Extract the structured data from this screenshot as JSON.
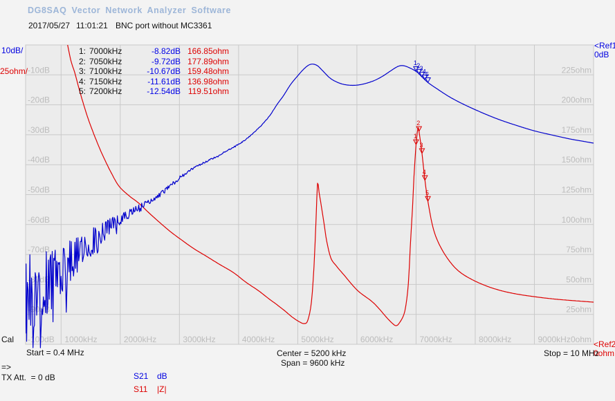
{
  "header": {
    "title": "DG8SAQ Vector Network Analyzer Software",
    "date": "2017/05/27",
    "time": "11:01:21",
    "device_label": "BNC port without MC3361"
  },
  "left_axis": {
    "db_per_div": "10dB/",
    "ohm_per_div": "25ohm/"
  },
  "right_axis": {
    "ref1": "<Ref1",
    "ref1_value": "0dB",
    "ref2": "<Ref2",
    "ref2_value": "0ohm"
  },
  "marker_table": {
    "rows": [
      {
        "idx": "1:",
        "freq": "7000kHz",
        "db": "-8.82dB",
        "ohm": "166.85ohm"
      },
      {
        "idx": "2:",
        "freq": "7050kHz",
        "db": "-9.72dB",
        "ohm": "177.89ohm"
      },
      {
        "idx": "3:",
        "freq": "7100kHz",
        "db": "-10.67dB",
        "ohm": "159.48ohm"
      },
      {
        "idx": "4:",
        "freq": "7150kHz",
        "db": "-11.61dB",
        "ohm": "136.98ohm"
      },
      {
        "idx": "5:",
        "freq": "7200kHz",
        "db": "-12.54dB",
        "ohm": "119.51ohm"
      }
    ]
  },
  "footer": {
    "cal": "Cal",
    "start": "Start = 0.4 MHz",
    "center": "Center = 5200 kHz",
    "span": "Span = 9600 kHz",
    "stop": "Stop = 10 MHz",
    "arrow": "=>",
    "tx_att": "TX Att.  = 0 dB",
    "s21_label": "S21",
    "s21_unit": "dB",
    "s11_label": "S11",
    "s11_unit": "|Z|"
  },
  "colors": {
    "title_blue": "#9db6d8",
    "text_blue": "#0000e0",
    "trace_blue": "#0000cc",
    "trace_red": "#dd0000",
    "grid": "#c9c9c9",
    "grid_label": "#bcbcbc",
    "plot_bg": "#ececec",
    "page_bg": "#f3f3f3"
  },
  "chart_data": {
    "type": "line",
    "x_axis": {
      "unit": "kHz",
      "min": 400,
      "max": 10000,
      "grid_step": 1000,
      "labels": [
        "1000kHz",
        "2000kHz",
        "3000kHz",
        "4000kHz",
        "5000kHz",
        "6000kHz",
        "7000kHz",
        "8000kHz",
        "9000kHz"
      ]
    },
    "y_axis_left": {
      "unit": "dB",
      "min": -100,
      "max": 0,
      "per_div": 10,
      "labels": [
        "-10dB",
        "-20dB",
        "-30dB",
        "-40dB",
        "-50dB",
        "-60dB",
        "-70dB",
        "-80dB",
        "-90dB"
      ],
      "bottom_label": "-100dB"
    },
    "y_axis_right": {
      "unit": "ohm",
      "min": 0,
      "max": 250,
      "per_div": 25,
      "labels": [
        "225ohm",
        "200ohm",
        "175ohm",
        "150ohm",
        "125ohm",
        "100ohm",
        "75ohm",
        "50ohm",
        "25ohm"
      ],
      "bottom_label": "0ohm"
    },
    "series": [
      {
        "name": "S21",
        "unit": "dB",
        "axis": "left",
        "color": "#0000cc",
        "points": [
          [
            400,
            -85
          ],
          [
            500,
            -83.5
          ],
          [
            600,
            -82
          ],
          [
            700,
            -80.5
          ],
          [
            800,
            -79
          ],
          [
            900,
            -77.5
          ],
          [
            1000,
            -76
          ],
          [
            1100,
            -74
          ],
          [
            1200,
            -72
          ],
          [
            1350,
            -69
          ],
          [
            1500,
            -66
          ],
          [
            1650,
            -63.5
          ],
          [
            1800,
            -61
          ],
          [
            1950,
            -59
          ],
          [
            2100,
            -57
          ],
          [
            2250,
            -55
          ],
          [
            2400,
            -53.3
          ],
          [
            2550,
            -51.8
          ],
          [
            2750,
            -48.6
          ],
          [
            3000,
            -44.3
          ],
          [
            3300,
            -40.5
          ],
          [
            3600,
            -37.5
          ],
          [
            3900,
            -34.3
          ],
          [
            4100,
            -31.9
          ],
          [
            4300,
            -28.5
          ],
          [
            4500,
            -24.3
          ],
          [
            4650,
            -19.9
          ],
          [
            4760,
            -16.9
          ],
          [
            4880,
            -13.2
          ],
          [
            5000,
            -10.3
          ],
          [
            5100,
            -8.1
          ],
          [
            5180,
            -6.8
          ],
          [
            5250,
            -6.4
          ],
          [
            5330,
            -6.9
          ],
          [
            5420,
            -8.6
          ],
          [
            5530,
            -10.8
          ],
          [
            5620,
            -12.0
          ],
          [
            5760,
            -13.1
          ],
          [
            5930,
            -13.5
          ],
          [
            6100,
            -13.1
          ],
          [
            6280,
            -12.0
          ],
          [
            6430,
            -10.5
          ],
          [
            6560,
            -8.8
          ],
          [
            6680,
            -7.3
          ],
          [
            6760,
            -6.9
          ],
          [
            6850,
            -7.3
          ],
          [
            7000,
            -8.82
          ],
          [
            7100,
            -10.67
          ],
          [
            7200,
            -12.54
          ],
          [
            7350,
            -14.6
          ],
          [
            7570,
            -17.4
          ],
          [
            7800,
            -19.8
          ],
          [
            8100,
            -22.5
          ],
          [
            8400,
            -24.9
          ],
          [
            8700,
            -26.9
          ],
          [
            9000,
            -28.7
          ],
          [
            9300,
            -30.1
          ],
          [
            9600,
            -31.4
          ],
          [
            9800,
            -32.1
          ],
          [
            10000,
            -32.8
          ]
        ],
        "noise_envelope": [
          [
            400,
            15
          ],
          [
            550,
            13.5
          ],
          [
            700,
            12
          ],
          [
            850,
            10.5
          ],
          [
            1000,
            9
          ],
          [
            1150,
            7.8
          ],
          [
            1300,
            6.6
          ],
          [
            1450,
            5.4
          ],
          [
            1600,
            4.2
          ],
          [
            1750,
            3.2
          ],
          [
            1900,
            2.4
          ],
          [
            2050,
            1.8
          ],
          [
            2200,
            1.3
          ],
          [
            2350,
            1.0
          ],
          [
            2500,
            0.8
          ],
          [
            2700,
            0.6
          ],
          [
            3000,
            0.45
          ],
          [
            3400,
            0.3
          ],
          [
            3800,
            0.2
          ],
          [
            4200,
            0.12
          ],
          [
            4600,
            0.05
          ],
          [
            5000,
            0
          ]
        ]
      },
      {
        "name": "S11 |Z|",
        "unit": "ohm",
        "axis": "right",
        "color": "#dd0000",
        "points": [
          [
            1080,
            258
          ],
          [
            1160,
            238
          ],
          [
            1230,
            227
          ],
          [
            1300,
            214
          ],
          [
            1370,
            202
          ],
          [
            1460,
            188
          ],
          [
            1550,
            176
          ],
          [
            1640,
            165
          ],
          [
            1720,
            156
          ],
          [
            1850,
            143
          ],
          [
            1980,
            132
          ],
          [
            2150,
            124
          ],
          [
            2310,
            118
          ],
          [
            2480,
            110
          ],
          [
            2660,
            102
          ],
          [
            2850,
            94
          ],
          [
            3040,
            87
          ],
          [
            3240,
            80
          ],
          [
            3440,
            74
          ],
          [
            3670,
            67
          ],
          [
            3910,
            60
          ],
          [
            4120,
            52
          ],
          [
            4330,
            45
          ],
          [
            4500,
            38.5
          ],
          [
            4650,
            33
          ],
          [
            4780,
            28
          ],
          [
            4900,
            23
          ],
          [
            5020,
            19
          ],
          [
            5110,
            17.3
          ],
          [
            5170,
            20
          ],
          [
            5230,
            35
          ],
          [
            5275,
            65
          ],
          [
            5310,
            105
          ],
          [
            5334,
            134.5
          ],
          [
            5360,
            127
          ],
          [
            5400,
            115
          ],
          [
            5450,
            99
          ],
          [
            5490,
            86
          ],
          [
            5560,
            72
          ],
          [
            5660,
            65
          ],
          [
            5780,
            58
          ],
          [
            6010,
            45
          ],
          [
            6280,
            34.6
          ],
          [
            6510,
            22
          ],
          [
            6600,
            17.5
          ],
          [
            6660,
            15.6
          ],
          [
            6720,
            18
          ],
          [
            6810,
            27.7
          ],
          [
            6870,
            50.8
          ],
          [
            6900,
            79.7
          ],
          [
            6940,
            114
          ],
          [
            6965,
            140
          ],
          [
            7000,
            166.85
          ],
          [
            7030,
            180
          ],
          [
            7050,
            177.89
          ],
          [
            7100,
            159.48
          ],
          [
            7150,
            136.98
          ],
          [
            7200,
            119.51
          ],
          [
            7270,
            101
          ],
          [
            7350,
            88
          ],
          [
            7500,
            74
          ],
          [
            7700,
            62
          ],
          [
            7960,
            53.7
          ],
          [
            8300,
            46.8
          ],
          [
            8700,
            42
          ],
          [
            9300,
            38
          ],
          [
            10000,
            35.2
          ]
        ]
      }
    ],
    "markers": [
      {
        "label": "1",
        "freq_khz": 7000,
        "s21_db": -8.82,
        "z_ohm": 166.85
      },
      {
        "label": "2",
        "freq_khz": 7050,
        "s21_db": -9.72,
        "z_ohm": 177.89
      },
      {
        "label": "3",
        "freq_khz": 7100,
        "s21_db": -10.67,
        "z_ohm": 159.48
      },
      {
        "label": "4",
        "freq_khz": 7150,
        "s21_db": -11.61,
        "z_ohm": 136.98
      },
      {
        "label": "5",
        "freq_khz": 7200,
        "s21_db": -12.54,
        "z_ohm": 119.51
      }
    ]
  }
}
